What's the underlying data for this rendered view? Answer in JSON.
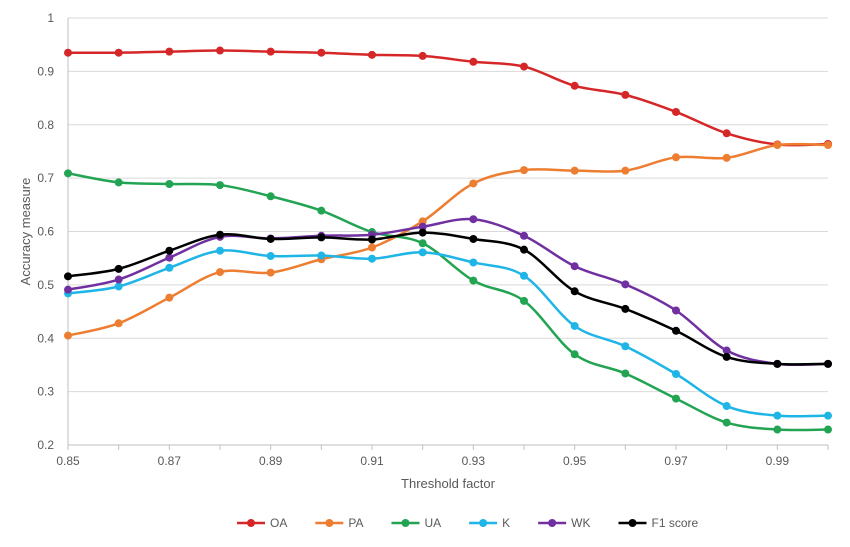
{
  "chart_data": {
    "type": "line",
    "xlabel": "Threshold factor",
    "ylabel": "Accuracy measure",
    "x": [
      0.85,
      0.86,
      0.87,
      0.88,
      0.89,
      0.9,
      0.91,
      0.92,
      0.93,
      0.94,
      0.95,
      0.96,
      0.97,
      0.98,
      0.99,
      1.0
    ],
    "xlim": [
      0.85,
      1.0
    ],
    "ylim": [
      0.2,
      1.0
    ],
    "x_tick_labels": [
      "0.85",
      "0.87",
      "0.89",
      "0.91",
      "0.93",
      "0.95",
      "0.97",
      "0.99"
    ],
    "y_tick_labels": [
      "0.2",
      "0.3",
      "0.4",
      "0.5",
      "0.6",
      "0.7",
      "0.8",
      "0.9",
      "1"
    ],
    "grid": "horizontal",
    "legend_position": "bottom",
    "series": [
      {
        "name": "OA",
        "color": "#d62728",
        "values": [
          0.935,
          0.935,
          0.937,
          0.939,
          0.937,
          0.935,
          0.931,
          0.929,
          0.918,
          0.909,
          0.873,
          0.856,
          0.824,
          0.784,
          0.763,
          0.764
        ]
      },
      {
        "name": "PA",
        "color": "#ed7d31",
        "values": [
          0.405,
          0.428,
          0.476,
          0.524,
          0.523,
          0.548,
          0.57,
          0.619,
          0.69,
          0.715,
          0.714,
          0.714,
          0.739,
          0.738,
          0.762,
          0.762
        ]
      },
      {
        "name": "UA",
        "color": "#22a453",
        "values": [
          0.709,
          0.692,
          0.689,
          0.687,
          0.666,
          0.639,
          0.599,
          0.578,
          0.508,
          0.47,
          0.37,
          0.334,
          0.287,
          0.242,
          0.229,
          0.229
        ]
      },
      {
        "name": "K",
        "color": "#1fb5e6",
        "values": [
          0.484,
          0.497,
          0.532,
          0.564,
          0.554,
          0.555,
          0.549,
          0.561,
          0.542,
          0.517,
          0.423,
          0.385,
          0.333,
          0.273,
          0.255,
          0.255
        ]
      },
      {
        "name": "WK",
        "color": "#7030a0",
        "values": [
          0.491,
          0.51,
          0.551,
          0.59,
          0.587,
          0.592,
          0.594,
          0.609,
          0.623,
          0.592,
          0.535,
          0.501,
          0.452,
          0.377,
          0.352,
          0.352
        ]
      },
      {
        "name": "F1 score",
        "color": "#000000",
        "values": [
          0.516,
          0.53,
          0.564,
          0.594,
          0.586,
          0.589,
          0.585,
          0.598,
          0.586,
          0.566,
          0.488,
          0.455,
          0.414,
          0.365,
          0.352,
          0.352
        ]
      }
    ]
  }
}
